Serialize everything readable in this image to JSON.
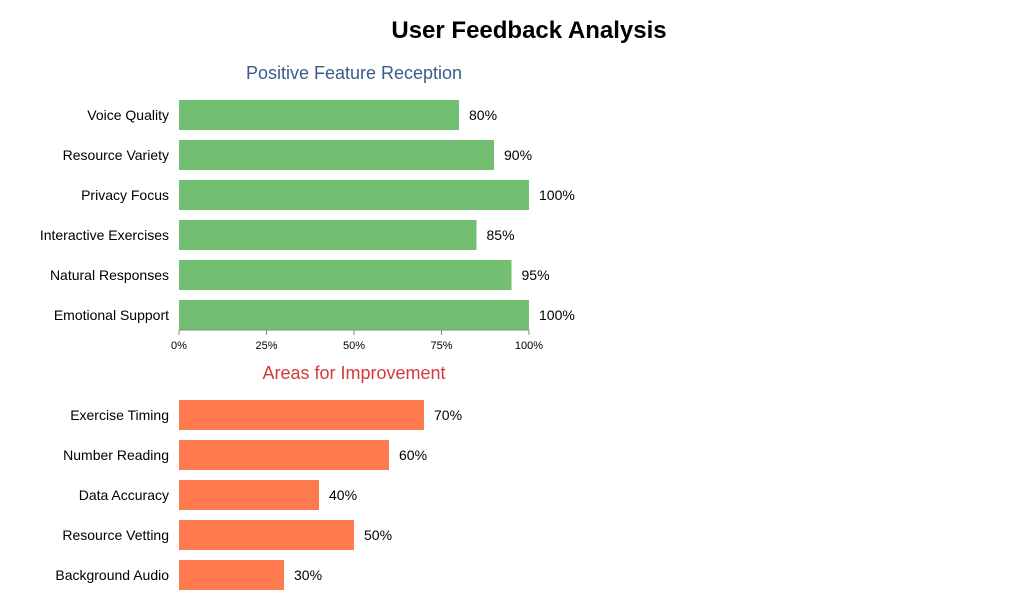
{
  "title": "User Feedback Analysis",
  "chart_data": [
    {
      "type": "bar",
      "orientation": "horizontal",
      "title": "Positive Feature Reception",
      "title_color": "#3b5b8c",
      "bar_color": "#72bf72",
      "categories": [
        "Voice Quality",
        "Resource Variety",
        "Privacy Focus",
        "Interactive Exercises",
        "Natural Responses",
        "Emotional Support"
      ],
      "values": [
        80,
        90,
        100,
        85,
        95,
        100
      ],
      "value_labels": [
        "80%",
        "90%",
        "100%",
        "85%",
        "95%",
        "100%"
      ],
      "xlim": [
        0,
        100
      ],
      "x_ticks": [
        0,
        25,
        50,
        75,
        100
      ],
      "x_tick_labels": [
        "0%",
        "25%",
        "50%",
        "75%",
        "100%"
      ],
      "xlabel": "",
      "ylabel": "",
      "grid": false
    },
    {
      "type": "bar",
      "orientation": "horizontal",
      "title": "Areas for Improvement",
      "title_color": "#d43a3a",
      "bar_color": "#ff7b4f",
      "categories": [
        "Exercise Timing",
        "Number Reading",
        "Data Accuracy",
        "Resource Vetting",
        "Background Audio"
      ],
      "values": [
        70,
        60,
        40,
        50,
        30
      ],
      "value_labels": [
        "70%",
        "60%",
        "40%",
        "50%",
        "30%"
      ],
      "xlim": [
        0,
        100
      ],
      "xlabel": "",
      "ylabel": "",
      "grid": false
    }
  ]
}
